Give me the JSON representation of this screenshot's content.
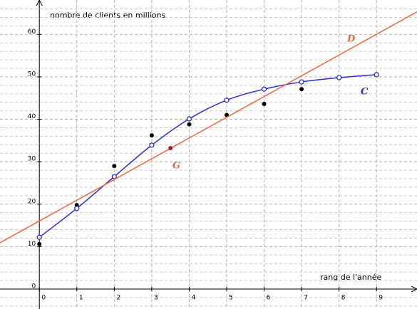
{
  "chart_data": {
    "type": "scatter",
    "x_label": "rang de l'année",
    "y_label": "nombre de clients en millions",
    "xlim": [
      -1.05,
      10.08
    ],
    "ylim": [
      -4.7,
      68.1
    ],
    "xticks": [
      0,
      1,
      2,
      3,
      4,
      5,
      6,
      7,
      8,
      9
    ],
    "yticks": [
      0,
      10,
      20,
      30,
      40,
      50,
      60
    ],
    "yminorticks": [
      -4,
      -2,
      2,
      4,
      6,
      8,
      12,
      14,
      16,
      18,
      22,
      24,
      26,
      28,
      32,
      34,
      36,
      38,
      42,
      44,
      46,
      48,
      52,
      54,
      56,
      58,
      62,
      64,
      66
    ],
    "grid": true,
    "series": [
      {
        "kind": "dots",
        "color": "#000000",
        "x": [
          0,
          1,
          2,
          3,
          4,
          5,
          6,
          7
        ],
        "values": [
          10.6,
          19.8,
          29,
          36.2,
          38.8,
          41,
          43.6,
          47.1
        ]
      },
      {
        "kind": "curve",
        "name": "C",
        "color": "#2b2bd6",
        "x": [
          0,
          1,
          2,
          3,
          4,
          5,
          6,
          7,
          8,
          9
        ],
        "values": [
          12.2,
          19,
          26.5,
          33.9,
          40.1,
          44.5,
          47.1,
          48.8,
          49.8,
          50.5
        ]
      },
      {
        "kind": "line",
        "name": "D",
        "color": "#f0643c",
        "x": [
          -1.05,
          10.08
        ],
        "values": [
          10.9,
          65.3
        ]
      },
      {
        "kind": "dots",
        "name": "G",
        "color": "#a02020",
        "x": [
          3.5
        ],
        "values": [
          33.2
        ]
      }
    ]
  }
}
